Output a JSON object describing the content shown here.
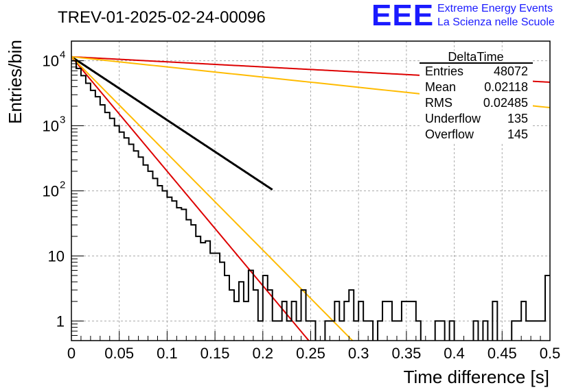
{
  "title": "TREV-01-2025-02-24-00096",
  "logo": {
    "mark": "EEE",
    "line1": "Extreme Energy Events",
    "line2": "La Scienza nelle Scuole",
    "color": "#1a1aff"
  },
  "stats_box": {
    "name": "DeltaTime",
    "rows": [
      {
        "label": "Entries",
        "value": "48072"
      },
      {
        "label": "Mean",
        "value": "0.02118"
      },
      {
        "label": "RMS",
        "value": "0.02485"
      },
      {
        "label": "Underflow",
        "value": "135"
      },
      {
        "label": "Overflow",
        "value": "145"
      }
    ]
  },
  "chart_data": {
    "type": "line",
    "title": "TREV-01-2025-02-24-00096",
    "xlabel": "Time difference [s]",
    "ylabel": "Entries/bin",
    "xlim": [
      0,
      0.5
    ],
    "ylim": [
      0.5,
      20000
    ],
    "yscale": "log",
    "grid": true,
    "x_ticks": [
      "0",
      "0.05",
      "0.1",
      "0.15",
      "0.2",
      "0.25",
      "0.3",
      "0.35",
      "0.4",
      "0.45",
      "0.5"
    ],
    "y_ticks": [
      {
        "base": "1",
        "exp": ""
      },
      {
        "base": "10",
        "exp": ""
      },
      {
        "base": "10",
        "exp": "2"
      },
      {
        "base": "10",
        "exp": "3"
      },
      {
        "base": "10",
        "exp": "4"
      }
    ],
    "y_tick_values": [
      1,
      10,
      100,
      1000,
      10000
    ],
    "histogram": {
      "bin_width": 0.005,
      "x_start": 0,
      "color": "#000000",
      "counts": [
        10000,
        7600,
        5900,
        4500,
        3500,
        2800,
        2100,
        1600,
        1300,
        1000,
        800,
        650,
        520,
        410,
        330,
        250,
        200,
        155,
        120,
        100,
        80,
        70,
        55,
        52,
        36,
        30,
        20,
        16,
        17,
        11,
        11,
        8,
        5,
        3,
        2,
        4,
        2,
        6,
        3,
        1,
        5,
        3,
        1,
        1,
        2,
        1,
        2,
        1,
        3,
        1,
        1,
        0,
        0,
        1,
        1,
        2,
        1,
        2,
        3,
        1,
        2,
        1,
        1,
        0,
        1,
        2,
        2,
        1,
        1,
        2,
        2,
        2,
        1,
        0,
        0,
        0,
        1,
        1,
        0,
        1,
        0,
        0,
        0,
        0,
        1,
        0,
        1,
        0,
        2,
        0,
        0,
        0,
        1,
        1,
        2,
        1,
        1,
        1,
        1,
        5
      ]
    },
    "fits": [
      {
        "color": "#000000",
        "x0": 0,
        "y0": 11500,
        "slope": -22.4,
        "xmax": 0.21
      },
      {
        "color": "#dd0000",
        "x0": 0,
        "y0": 11500,
        "slope": -40.5,
        "xmax": 0.5
      },
      {
        "color": "#ffbb00",
        "x0": 0,
        "y0": 11500,
        "slope": -34.2,
        "xmax": 0.5
      },
      {
        "color": "#dd0000",
        "x0": 0,
        "y0": 11500,
        "slope": -1.8,
        "xmax": 0.5
      },
      {
        "color": "#ffbb00",
        "x0": 0,
        "y0": 11500,
        "slope": -3.6,
        "xmax": 0.5
      }
    ]
  }
}
